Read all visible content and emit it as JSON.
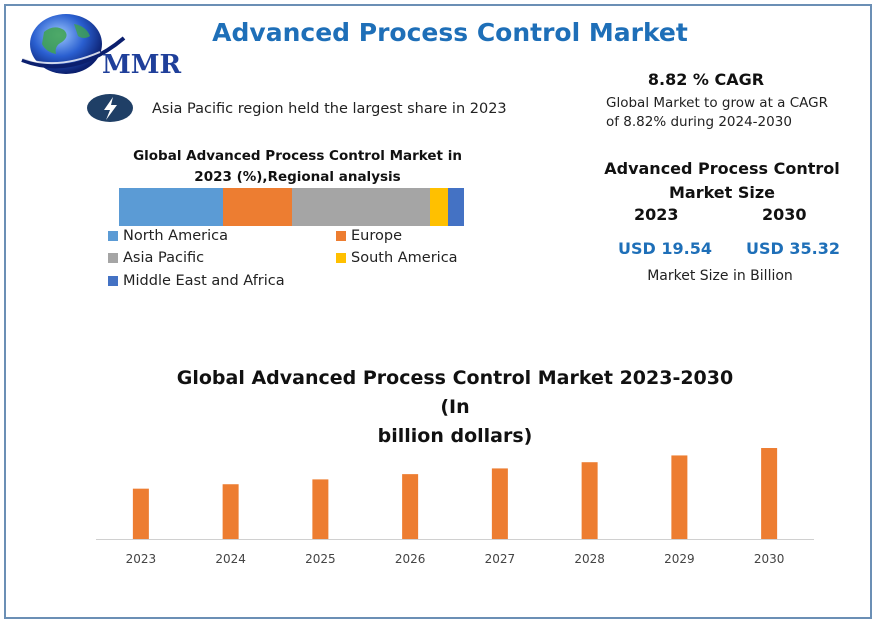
{
  "header": {
    "title": "Advanced Process Control Market",
    "logo_text": "MMR"
  },
  "highlight": {
    "text": "Asia Pacific region held the largest share in 2023",
    "icon": "lightning-bolt-icon"
  },
  "cagr": {
    "title": "8.82 % CAGR",
    "description_line1": "Global Market to grow at a CAGR",
    "description_line2": "of 8.82% during 2024-2030"
  },
  "market_size": {
    "title_line1": "Advanced Process Control",
    "title_line2": "Market Size",
    "year_start": "2023",
    "year_end": "2030",
    "value_start": "USD 19.54",
    "value_end": "USD 35.32",
    "unit_note": "Market Size in Billion"
  },
  "colors": {
    "title_blue": "#1e6fb8",
    "bar_orange": "#ed7d31",
    "north_america": "#5b9bd5",
    "europe": "#ed7d31",
    "asia_pacific": "#a5a5a5",
    "south_america": "#ffc000",
    "mea": "#4472c4"
  },
  "chart_data": [
    {
      "type": "bar",
      "orientation": "horizontal-stacked",
      "title_line1": "Global Advanced Process Control Market  in",
      "title_line2": "2023 (%),Regional analysis",
      "series": [
        {
          "name": "North America",
          "values": [
            30
          ]
        },
        {
          "name": "Europe",
          "values": [
            20
          ]
        },
        {
          "name": "Asia Pacific",
          "values": [
            40
          ]
        },
        {
          "name": "South America",
          "values": [
            5.5
          ]
        },
        {
          "name": "Middle East and Africa",
          "values": [
            4.5
          ]
        }
      ],
      "legend": "bottom"
    },
    {
      "type": "bar",
      "title_line1": "Global Advanced Process Control Market 2023-2030  (In",
      "title_line2": "billion dollars)",
      "categories": [
        "2023",
        "2024",
        "2025",
        "2026",
        "2027",
        "2028",
        "2029",
        "2030"
      ],
      "values": [
        19.54,
        21.26,
        23.14,
        25.18,
        27.4,
        29.81,
        32.44,
        35.32
      ],
      "ylim": [
        0,
        40
      ],
      "xlabel": "",
      "ylabel": ""
    }
  ]
}
